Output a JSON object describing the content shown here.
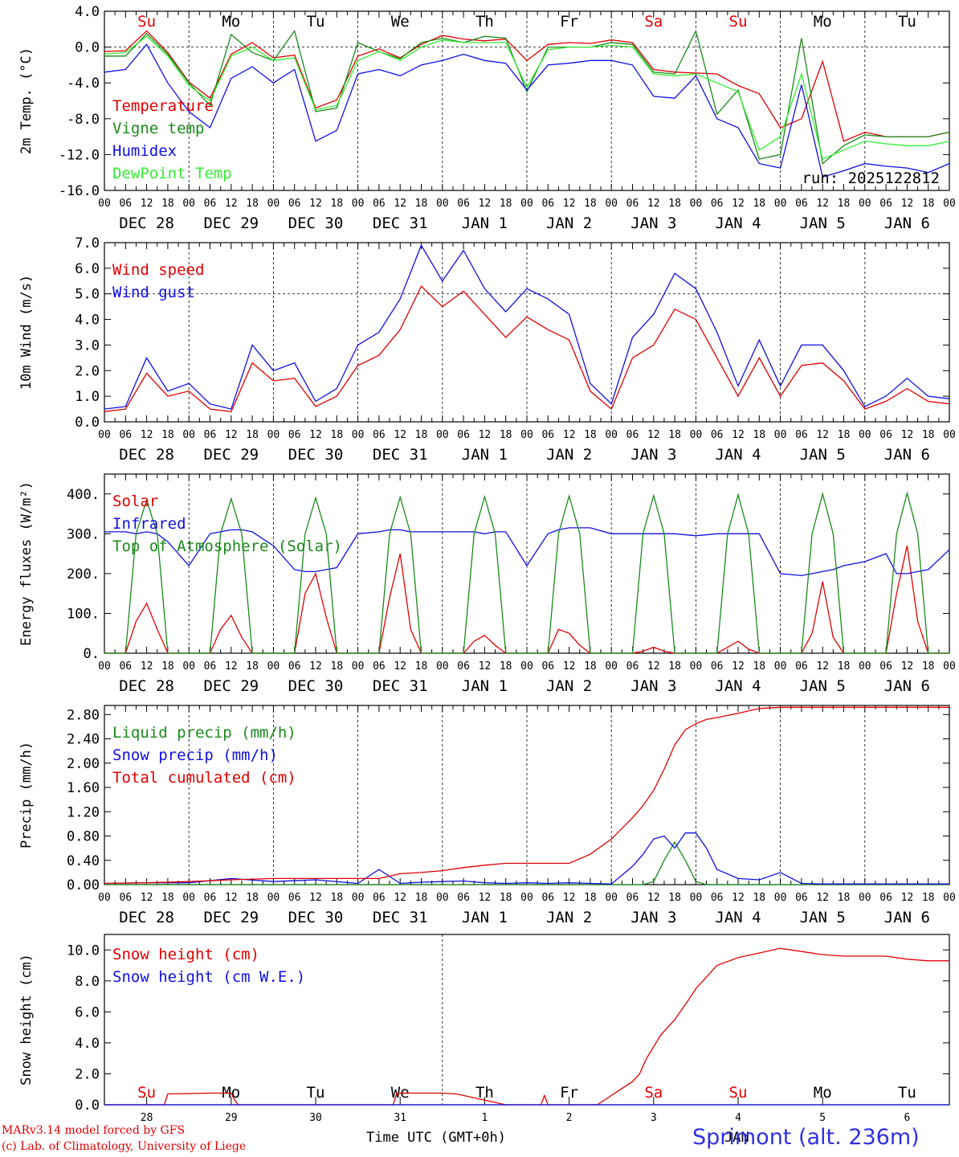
{
  "footer": {
    "model": "MARv3.14 model forced by GFS",
    "credit": "(c) Lab. of Climatology, University of Liege",
    "xlabel": "Time UTC (GMT+0h)",
    "station": "Sprimont (alt. 236m)",
    "month": "JAN"
  },
  "colors": {
    "red": "#e00000",
    "green": "#1a8a1a",
    "blue": "#1010e0",
    "lightgreen": "#33ee33"
  },
  "days": {
    "dates": [
      "DEC 28",
      "DEC 29",
      "DEC 30",
      "DEC 31",
      "JAN  1",
      "JAN  2",
      "JAN  3",
      "JAN  4",
      "JAN  5",
      "JAN  6"
    ],
    "names": [
      "Su",
      "Mo",
      "Tu",
      "We",
      "Th",
      "Fr",
      "Sa",
      "Su",
      "Mo",
      "Tu"
    ],
    "name_colors": [
      "red",
      "black",
      "black",
      "black",
      "black",
      "black",
      "red",
      "red",
      "black",
      "black"
    ],
    "nums": [
      "28",
      "29",
      "30",
      "31",
      "1",
      "2",
      "3",
      "4",
      "5",
      "6"
    ],
    "hours": [
      "00",
      "06",
      "12",
      "18"
    ]
  },
  "chart_data": [
    {
      "type": "line",
      "ylabel": "2m Temp. (°C)",
      "ylim": [
        -16,
        4
      ],
      "yticks": [
        "4.0",
        "0.0",
        "-4.0",
        "-8.0",
        "-12.0",
        "-16.0"
      ],
      "ref_line": 0,
      "run_label": "run: 2025122812",
      "x_hours": [
        0,
        6,
        12,
        18,
        24,
        30,
        36,
        42,
        48,
        54,
        60,
        66,
        72,
        78,
        84,
        90,
        96,
        102,
        108,
        114,
        120,
        126,
        132,
        138,
        144,
        150,
        156,
        162,
        168,
        174,
        180,
        186,
        192,
        198,
        204,
        210,
        216,
        222,
        228,
        234,
        240
      ],
      "series": [
        {
          "name": "Temperature",
          "color": "red",
          "values": [
            -0.5,
            -0.4,
            1.8,
            -0.6,
            -3.9,
            -5.7,
            -0.8,
            0.5,
            -1.2,
            -0.9,
            -6.8,
            -5.9,
            -1.0,
            -0.2,
            -1.2,
            0.3,
            1.3,
            0.9,
            0.7,
            0.9,
            -1.5,
            0.3,
            0.5,
            0.4,
            0.8,
            0.5,
            -2.5,
            -2.8,
            -2.9,
            -3.0,
            -4.3,
            -5.2,
            -9.0,
            -8.0,
            -1.6,
            -10.5,
            -9.5,
            -10.0,
            -10.0,
            -10.0,
            -9.5
          ]
        },
        {
          "name": "Vigne temp",
          "color": "green",
          "values": [
            -1.0,
            -1.0,
            1.5,
            -0.8,
            -4.0,
            -6.5,
            1.4,
            -0.6,
            -1.5,
            1.8,
            -7.2,
            -6.8,
            0.5,
            -0.5,
            -1.3,
            0.5,
            1.0,
            0.5,
            1.2,
            1.0,
            -5.0,
            0.0,
            0.0,
            0.0,
            0.5,
            0.3,
            -2.8,
            -3.0,
            1.8,
            -7.5,
            -4.8,
            -12.5,
            -12.0,
            1.0,
            -13.0,
            -11.0,
            -9.8,
            -10.0,
            -10.0,
            -10.0,
            -9.5
          ]
        },
        {
          "name": "Humidex",
          "color": "blue",
          "values": [
            -2.8,
            -2.5,
            0.3,
            -4.0,
            -7.2,
            -9.0,
            -3.5,
            -2.2,
            -4.0,
            -2.5,
            -10.5,
            -9.3,
            -3.0,
            -2.5,
            -3.2,
            -2.0,
            -1.5,
            -0.8,
            -1.5,
            -1.8,
            -4.8,
            -2.0,
            -1.8,
            -1.5,
            -1.5,
            -2.0,
            -5.5,
            -5.7,
            -3.2,
            -8.0,
            -9.0,
            -13.0,
            -13.5,
            -4.2,
            -14.5,
            -13.8,
            -13.0,
            -13.3,
            -13.5,
            -14.0,
            -13.0
          ]
        },
        {
          "name": "DewPoint Temp",
          "color": "lightgreen",
          "values": [
            -0.8,
            -0.6,
            1.2,
            -1.0,
            -4.3,
            -6.0,
            -1.0,
            0.0,
            -1.5,
            -1.2,
            -7.0,
            -6.5,
            -1.5,
            -0.5,
            -1.5,
            0.0,
            0.8,
            0.5,
            0.5,
            0.5,
            -4.5,
            -0.3,
            0.0,
            0.0,
            0.2,
            0.0,
            -3.0,
            -3.2,
            -3.0,
            -4.0,
            -5.0,
            -11.5,
            -10.0,
            -3.0,
            -12.5,
            -11.5,
            -10.5,
            -10.8,
            -11.0,
            -11.0,
            -10.5
          ]
        }
      ]
    },
    {
      "type": "line",
      "ylabel": "10m Wind (m/s)",
      "ylim": [
        0,
        7
      ],
      "yticks": [
        "7.0",
        "6.0",
        "5.0",
        "4.0",
        "3.0",
        "2.0",
        "1.0",
        "0.0"
      ],
      "ref_line": 5,
      "x_hours": [
        0,
        6,
        12,
        18,
        24,
        30,
        36,
        42,
        48,
        54,
        60,
        66,
        72,
        78,
        84,
        90,
        96,
        102,
        108,
        114,
        120,
        126,
        132,
        138,
        144,
        150,
        156,
        162,
        168,
        174,
        180,
        186,
        192,
        198,
        204,
        210,
        216,
        222,
        228,
        234,
        240
      ],
      "series": [
        {
          "name": "Wind speed",
          "color": "red",
          "values": [
            0.4,
            0.5,
            1.9,
            1.0,
            1.2,
            0.5,
            0.4,
            2.3,
            1.6,
            1.7,
            0.6,
            1.0,
            2.2,
            2.6,
            3.6,
            5.3,
            4.5,
            5.1,
            4.2,
            3.3,
            4.1,
            3.6,
            3.2,
            1.2,
            0.5,
            2.5,
            3.0,
            4.4,
            4.0,
            2.5,
            1.0,
            2.5,
            1.0,
            2.2,
            2.3,
            1.6,
            0.5,
            0.8,
            1.3,
            0.8,
            0.7
          ]
        },
        {
          "name": "Wind gust",
          "color": "blue",
          "values": [
            0.5,
            0.6,
            2.5,
            1.2,
            1.5,
            0.7,
            0.5,
            3.0,
            2.0,
            2.3,
            0.8,
            1.3,
            3.0,
            3.5,
            4.8,
            6.9,
            5.5,
            6.7,
            5.2,
            4.3,
            5.2,
            4.8,
            4.2,
            1.5,
            0.7,
            3.3,
            4.2,
            5.8,
            5.2,
            3.5,
            1.4,
            3.2,
            1.4,
            3.0,
            3.0,
            2.0,
            0.6,
            1.0,
            1.7,
            1.0,
            0.9
          ]
        }
      ]
    },
    {
      "type": "line",
      "ylabel": "Energy fluxes (W/m²)",
      "ylim": [
        0,
        450
      ],
      "yticks": [
        "400.",
        "300.",
        "200.",
        "100.",
        "0."
      ],
      "x_hours": [
        0,
        6,
        9,
        12,
        15,
        18,
        24,
        30,
        33,
        36,
        39,
        42,
        48,
        54,
        57,
        60,
        63,
        66,
        72,
        78,
        81,
        84,
        87,
        90,
        96,
        102,
        105,
        108,
        111,
        114,
        120,
        126,
        129,
        132,
        135,
        138,
        144,
        150,
        153,
        156,
        159,
        162,
        168,
        174,
        177,
        180,
        183,
        186,
        192,
        198,
        201,
        204,
        207,
        210,
        216,
        222,
        225,
        228,
        231,
        234,
        240
      ],
      "series": [
        {
          "name": "Solar",
          "color": "red",
          "values": [
            0,
            0,
            80,
            125,
            60,
            0,
            0,
            0,
            60,
            95,
            40,
            0,
            0,
            0,
            150,
            200,
            90,
            0,
            0,
            0,
            140,
            250,
            60,
            0,
            0,
            0,
            30,
            45,
            20,
            0,
            0,
            0,
            60,
            50,
            20,
            0,
            0,
            0,
            5,
            15,
            5,
            0,
            0,
            0,
            15,
            30,
            10,
            0,
            0,
            0,
            50,
            180,
            40,
            0,
            0,
            0,
            150,
            270,
            80,
            0,
            0
          ]
        },
        {
          "name": "Infrared",
          "color": "blue",
          "values": [
            305,
            305,
            300,
            305,
            300,
            280,
            220,
            300,
            305,
            310,
            310,
            305,
            270,
            210,
            205,
            205,
            210,
            215,
            300,
            305,
            310,
            310,
            305,
            305,
            305,
            305,
            305,
            300,
            305,
            305,
            220,
            300,
            310,
            315,
            315,
            315,
            300,
            300,
            300,
            300,
            300,
            300,
            295,
            300,
            300,
            300,
            300,
            300,
            200,
            195,
            200,
            205,
            210,
            220,
            230,
            250,
            200,
            200,
            205,
            210,
            260
          ]
        },
        {
          "name": "Top of Atmosphere (Solar)",
          "color": "green",
          "values": [
            0,
            0,
            300,
            385,
            300,
            0,
            0,
            0,
            300,
            388,
            300,
            0,
            0,
            0,
            300,
            390,
            300,
            0,
            0,
            0,
            300,
            392,
            300,
            0,
            0,
            0,
            300,
            393,
            300,
            0,
            0,
            0,
            300,
            395,
            300,
            0,
            0,
            0,
            300,
            396,
            300,
            0,
            0,
            0,
            300,
            398,
            300,
            0,
            0,
            0,
            300,
            400,
            300,
            0,
            0,
            0,
            300,
            402,
            300,
            0,
            0
          ]
        }
      ]
    },
    {
      "type": "line",
      "ylabel": "Precip (mm/h)",
      "ylim": [
        0,
        2.95
      ],
      "yticks": [
        "2.80",
        "2.40",
        "2.00",
        "1.60",
        "1.20",
        "0.80",
        "0.40",
        "0.00"
      ],
      "x_hours": [
        0,
        12,
        24,
        36,
        48,
        60,
        72,
        78,
        84,
        90,
        96,
        102,
        108,
        114,
        120,
        126,
        132,
        138,
        144,
        150,
        153,
        156,
        159,
        162,
        165,
        168,
        171,
        174,
        180,
        186,
        192,
        198,
        204,
        210,
        216,
        222,
        228,
        234,
        240
      ],
      "series": [
        {
          "name": "Liquid precip (mm/h)",
          "color": "green",
          "values": [
            0,
            0,
            0,
            0,
            0,
            0,
            0,
            0,
            0,
            0,
            0,
            0,
            0,
            0,
            0,
            0,
            0,
            0,
            0,
            0,
            0,
            0.05,
            0.4,
            0.7,
            0.4,
            0.05,
            0,
            0,
            0,
            0,
            0,
            0,
            0,
            0,
            0,
            0,
            0,
            0,
            0
          ]
        },
        {
          "name": "Snow precip (mm/h)",
          "color": "blue",
          "values": [
            0.02,
            0.03,
            0.03,
            0.1,
            0.05,
            0.08,
            0.02,
            0.25,
            0.02,
            0.04,
            0.05,
            0.06,
            0.03,
            0.02,
            0.03,
            0.02,
            0.03,
            0.02,
            0.01,
            0.3,
            0.5,
            0.75,
            0.8,
            0.6,
            0.85,
            0.85,
            0.6,
            0.25,
            0.1,
            0.08,
            0.2,
            0.02,
            0.01,
            0.01,
            0.01,
            0.01,
            0.01,
            0.01,
            0.01
          ]
        },
        {
          "name": "Total cumulated (cm)",
          "color": "red",
          "values": [
            0.02,
            0.03,
            0.05,
            0.08,
            0.1,
            0.1,
            0.1,
            0.1,
            0.18,
            0.2,
            0.23,
            0.28,
            0.32,
            0.35,
            0.35,
            0.35,
            0.35,
            0.5,
            0.75,
            1.1,
            1.3,
            1.55,
            1.9,
            2.3,
            2.55,
            2.65,
            2.72,
            2.75,
            2.82,
            2.9,
            2.92,
            2.92,
            2.92,
            2.92,
            2.92,
            2.92,
            2.92,
            2.92,
            2.92
          ]
        }
      ]
    },
    {
      "type": "line",
      "ylabel": "Snow height (cm)",
      "ylim": [
        0,
        11
      ],
      "yticks": [
        "10.0",
        "8.0",
        "6.0",
        "4.0",
        "2.0",
        "0.0"
      ],
      "x_hours": [
        0,
        17,
        18,
        30,
        36,
        37,
        38,
        40,
        48,
        82,
        83,
        84,
        96,
        100,
        114,
        124,
        125,
        126,
        140,
        150,
        152,
        154,
        158,
        162,
        166,
        168,
        172,
        174,
        180,
        186,
        192,
        198,
        204,
        210,
        216,
        222,
        228,
        234,
        240
      ],
      "series": [
        {
          "name": "Snow height (cm)",
          "color": "red",
          "values": [
            0,
            0,
            0.7,
            0.75,
            0.75,
            0.3,
            0,
            0,
            0,
            0,
            0.7,
            0.75,
            0.75,
            0.7,
            0,
            0,
            0.6,
            0,
            0,
            1.5,
            2.0,
            3.0,
            4.5,
            5.5,
            6.8,
            7.5,
            8.5,
            9.0,
            9.5,
            9.8,
            10.1,
            9.9,
            9.7,
            9.6,
            9.6,
            9.6,
            9.4,
            9.3,
            9.3
          ]
        },
        {
          "name": "Snow height (cm W.E.)",
          "color": "blue",
          "values": [
            0,
            0,
            0,
            0,
            0,
            0,
            0,
            0,
            0,
            0,
            0,
            0,
            0,
            0,
            0,
            0,
            0,
            0,
            0,
            0,
            0,
            0,
            0,
            0,
            0,
            0,
            0,
            0,
            0,
            0,
            0,
            0,
            0,
            0,
            0,
            0,
            0,
            0,
            0
          ]
        }
      ]
    }
  ]
}
